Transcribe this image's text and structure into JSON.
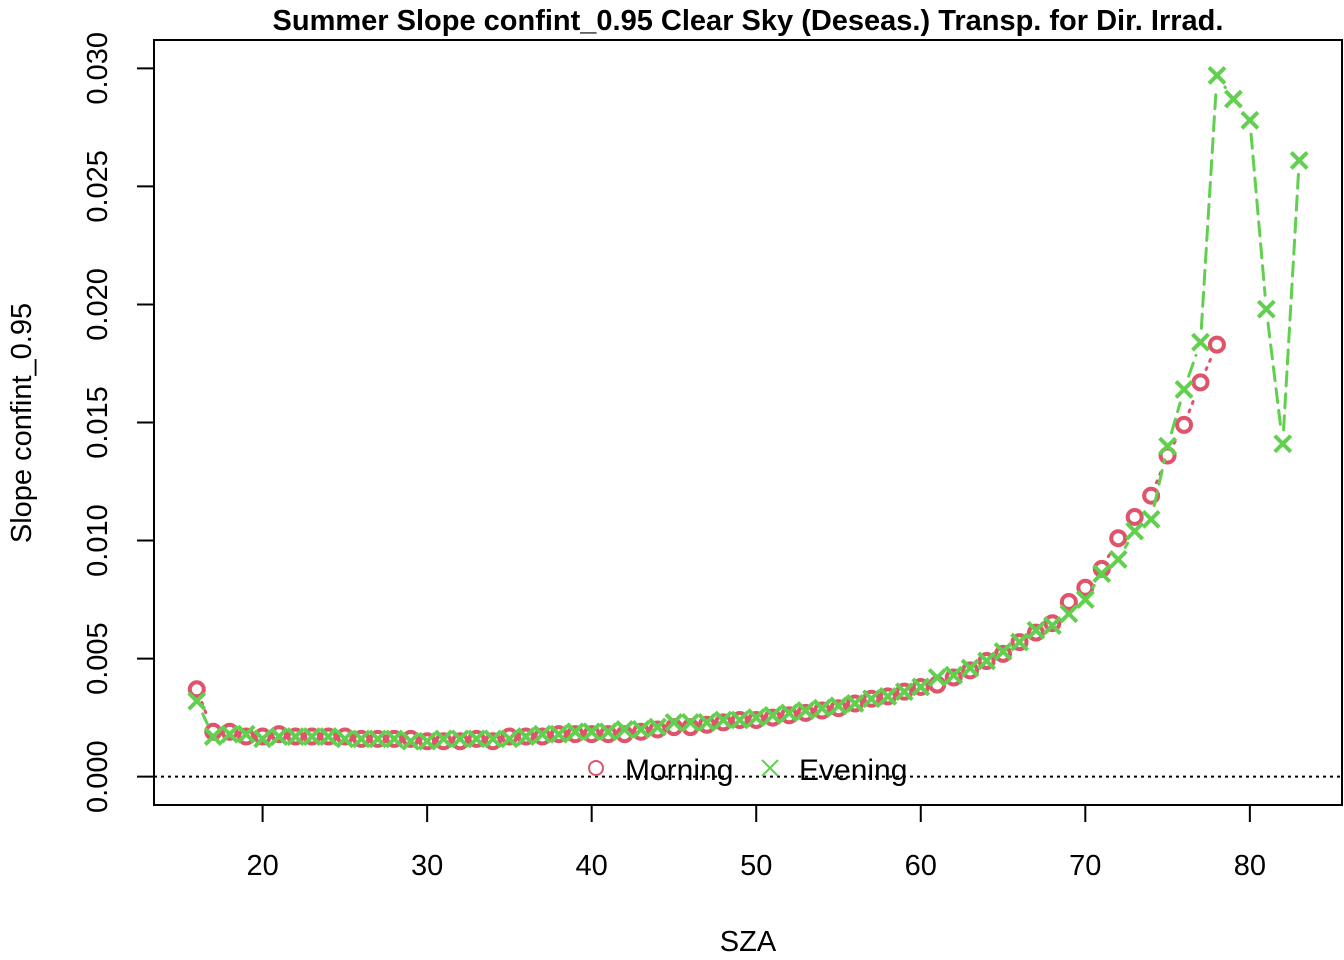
{
  "chart_data": {
    "type": "line",
    "title": "Summer Slope confint_0.95 Clear Sky (Deseas.) Transp. for Dir. Irrad.",
    "xlabel": "SZA",
    "ylabel": "Slope confint_0.95",
    "xlim": [
      13.4,
      85.6
    ],
    "ylim": [
      -0.0012,
      0.0312
    ],
    "xticks": [
      20,
      30,
      40,
      50,
      60,
      70,
      80
    ],
    "xtick_labels": [
      "20",
      "30",
      "40",
      "50",
      "60",
      "70",
      "80"
    ],
    "yticks": [
      0,
      0.005,
      0.01,
      0.015,
      0.02,
      0.025,
      0.03
    ],
    "ytick_labels": [
      "0.000",
      "0.005",
      "0.010",
      "0.015",
      "0.020",
      "0.025",
      "0.030"
    ],
    "hline": 0,
    "legend": {
      "position": "bottom-center",
      "entries": [
        "Morning",
        "Evening"
      ]
    },
    "series": [
      {
        "name": "Morning",
        "color": "#DF536B",
        "marker": "circle",
        "line": "dotted",
        "x": [
          16,
          17,
          18,
          19,
          20,
          21,
          22,
          23,
          24,
          25,
          26,
          27,
          28,
          29,
          30,
          31,
          32,
          33,
          34,
          35,
          36,
          37,
          38,
          39,
          40,
          41,
          42,
          43,
          44,
          45,
          46,
          47,
          48,
          49,
          50,
          51,
          52,
          53,
          54,
          55,
          56,
          57,
          58,
          59,
          60,
          61,
          62,
          63,
          64,
          65,
          66,
          67,
          68,
          69,
          70,
          71,
          72,
          73,
          74,
          75,
          76,
          77,
          78
        ],
        "y": [
          0.0037,
          0.0019,
          0.0019,
          0.0017,
          0.0017,
          0.0018,
          0.0017,
          0.0017,
          0.0017,
          0.0017,
          0.0016,
          0.0016,
          0.0016,
          0.0016,
          0.0015,
          0.0015,
          0.0015,
          0.0016,
          0.0015,
          0.0017,
          0.0017,
          0.0017,
          0.0018,
          0.0018,
          0.0018,
          0.0018,
          0.0018,
          0.0019,
          0.002,
          0.0021,
          0.0021,
          0.0022,
          0.0023,
          0.0024,
          0.0024,
          0.0025,
          0.0026,
          0.0027,
          0.0028,
          0.0029,
          0.0031,
          0.0033,
          0.0034,
          0.0036,
          0.0038,
          0.0039,
          0.0042,
          0.0045,
          0.0049,
          0.0052,
          0.0057,
          0.0061,
          0.0065,
          0.0074,
          0.008,
          0.0088,
          0.0101,
          0.011,
          0.0119,
          0.0136,
          0.0149,
          0.0167,
          0.0183
        ]
      },
      {
        "name": "Evening",
        "color": "#61D04F",
        "marker": "x",
        "line": "dashed",
        "x": [
          16,
          17,
          18,
          19,
          20,
          21,
          22,
          23,
          24,
          25,
          26,
          27,
          28,
          29,
          30,
          31,
          32,
          33,
          34,
          35,
          36,
          37,
          38,
          39,
          40,
          41,
          42,
          43,
          44,
          45,
          46,
          47,
          48,
          49,
          50,
          51,
          52,
          53,
          54,
          55,
          56,
          57,
          58,
          59,
          60,
          61,
          62,
          63,
          64,
          65,
          66,
          67,
          68,
          69,
          70,
          71,
          72,
          73,
          74,
          75,
          76,
          77,
          78,
          79,
          80,
          81,
          82,
          83
        ],
        "y": [
          0.0032,
          0.0017,
          0.0018,
          0.0018,
          0.0016,
          0.0017,
          0.0017,
          0.0017,
          0.0017,
          0.0016,
          0.0016,
          0.0016,
          0.0016,
          0.0015,
          0.0015,
          0.0016,
          0.0016,
          0.0016,
          0.0016,
          0.0016,
          0.0017,
          0.0018,
          0.0018,
          0.0019,
          0.0019,
          0.0019,
          0.002,
          0.002,
          0.0021,
          0.0023,
          0.0023,
          0.0023,
          0.0024,
          0.0024,
          0.0025,
          0.0026,
          0.0027,
          0.0028,
          0.0029,
          0.003,
          0.0031,
          0.0033,
          0.0034,
          0.0036,
          0.0038,
          0.0042,
          0.0043,
          0.0046,
          0.0049,
          0.0053,
          0.0057,
          0.0062,
          0.0064,
          0.0069,
          0.0075,
          0.0086,
          0.0092,
          0.0104,
          0.0109,
          0.014,
          0.0164,
          0.0184,
          0.0297,
          0.0287,
          0.0278,
          0.0198,
          0.0141,
          0.0261
        ]
      }
    ]
  }
}
